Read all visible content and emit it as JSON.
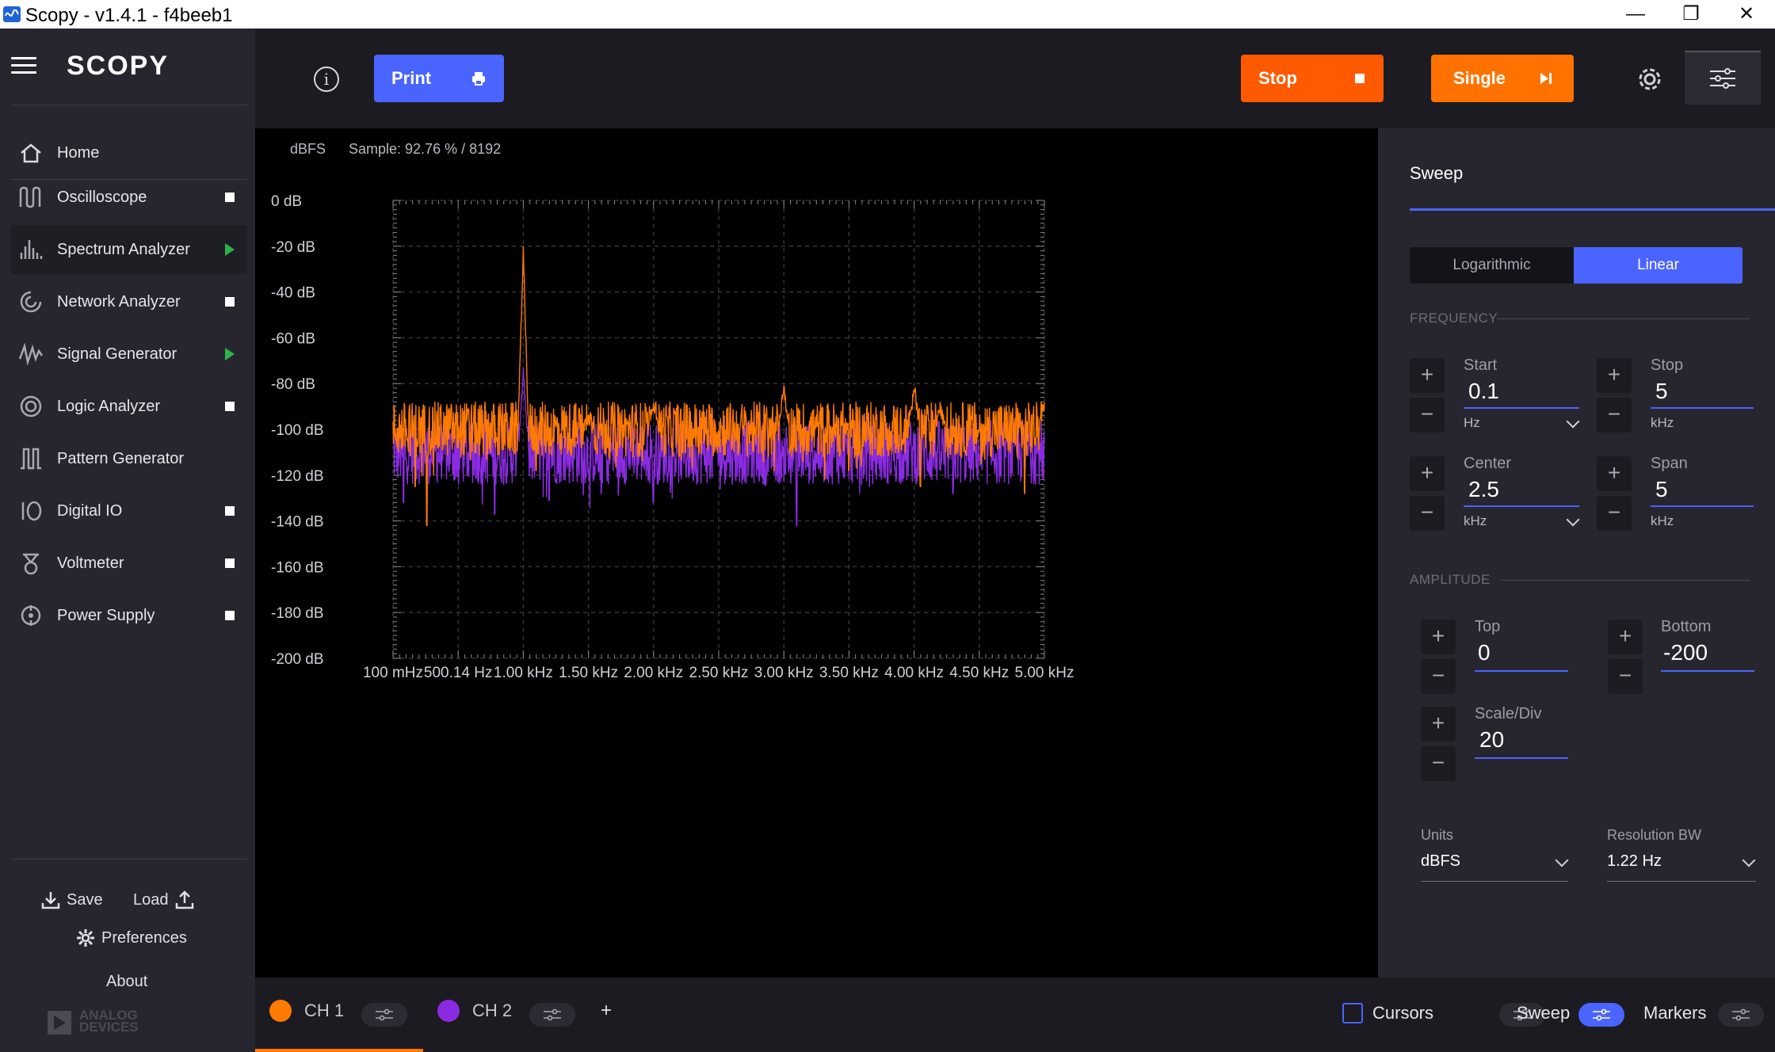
{
  "window": {
    "title": "Scopy - v1.4.1 - f4beeb1",
    "minimize": "—",
    "restore": "❐",
    "close": "✕"
  },
  "sidebar": {
    "logo": "SCOPY",
    "home": "Home",
    "items": [
      {
        "label": "Oscilloscope",
        "state": "stop"
      },
      {
        "label": "Spectrum Analyzer",
        "state": "run"
      },
      {
        "label": "Network Analyzer",
        "state": "stop"
      },
      {
        "label": "Signal Generator",
        "state": "run"
      },
      {
        "label": "Logic Analyzer",
        "state": "stop"
      },
      {
        "label": "Pattern Generator",
        "state": "none"
      },
      {
        "label": "Digital IO",
        "state": "stop"
      },
      {
        "label": "Voltmeter",
        "state": "stop"
      },
      {
        "label": "Power Supply",
        "state": "stop"
      }
    ],
    "save": "Save",
    "load": "Load",
    "preferences": "Preferences",
    "about": "About",
    "brand_line1": "ANALOG",
    "brand_line2": "DEVICES"
  },
  "toolbar": {
    "info": "i",
    "print_label": "Print",
    "stop_label": "Stop",
    "single_label": "Single",
    "colors": {
      "print": "#4a64ff",
      "stop": "#ff5a00",
      "single": "#ff7200"
    }
  },
  "plot": {
    "unit_label": "dBFS",
    "sample_text": "Sample: 92.76 % / 8192"
  },
  "chart_data": {
    "type": "line",
    "title": "",
    "xlabel": "",
    "ylabel": "",
    "x_unit": "Hz",
    "xlim": [
      0.1,
      5000
    ],
    "ylim": [
      -200,
      0
    ],
    "grid": true,
    "y_ticks": [
      "0 dB",
      "-20 dB",
      "-40 dB",
      "-60 dB",
      "-80 dB",
      "-100 dB",
      "-120 dB",
      "-140 dB",
      "-160 dB",
      "-180 dB",
      "-200 dB"
    ],
    "x_ticks": [
      "100 mHz",
      "500.14 Hz",
      "1.00 kHz",
      "1.50 kHz",
      "2.00 kHz",
      "2.50 kHz",
      "3.00 kHz",
      "3.50 kHz",
      "4.00 kHz",
      "4.50 kHz",
      "5.00 kHz"
    ],
    "series": [
      {
        "name": "CH 1",
        "color": "#ff7a00",
        "noise_floor_db": -100,
        "noise_spread_db": 12,
        "peaks": [
          {
            "x": 1000,
            "y": -22
          },
          {
            "x": 1500,
            "y": -95
          },
          {
            "x": 2000,
            "y": -88
          },
          {
            "x": 3000,
            "y": -81
          },
          {
            "x": 4000,
            "y": -81
          },
          {
            "x": 4200,
            "y": -91
          },
          {
            "x": 5000,
            "y": -88
          }
        ],
        "dips": [
          {
            "x": 170,
            "y": -125
          },
          {
            "x": 260,
            "y": -142
          },
          {
            "x": 1100,
            "y": -118
          },
          {
            "x": 3500,
            "y": -118
          },
          {
            "x": 4050,
            "y": -125
          },
          {
            "x": 4850,
            "y": -128
          }
        ]
      },
      {
        "name": "CH 2",
        "color": "#8a2be2",
        "noise_floor_db": -110,
        "noise_spread_db": 14,
        "peaks": [
          {
            "x": 1000,
            "y": -75
          }
        ],
        "dips": [
          {
            "x": 80,
            "y": -132
          },
          {
            "x": 780,
            "y": -137
          },
          {
            "x": 1200,
            "y": -131
          },
          {
            "x": 1600,
            "y": -128
          },
          {
            "x": 2000,
            "y": -132
          },
          {
            "x": 3100,
            "y": -142
          },
          {
            "x": 4300,
            "y": -128
          }
        ]
      }
    ]
  },
  "panel": {
    "title": "Sweep",
    "scale_log": "Logarithmic",
    "scale_lin": "Linear",
    "freq_section": "FREQUENCY",
    "start": {
      "label": "Start",
      "value": "0.1",
      "unit": "Hz"
    },
    "stop": {
      "label": "Stop",
      "value": "5",
      "unit": "kHz"
    },
    "center": {
      "label": "Center",
      "value": "2.5",
      "unit": "kHz"
    },
    "span": {
      "label": "Span",
      "value": "5",
      "unit": "kHz"
    },
    "amp_section": "AMPLITUDE",
    "top": {
      "label": "Top",
      "value": "0"
    },
    "bottom": {
      "label": "Bottom",
      "value": "-200"
    },
    "scalediv": {
      "label": "Scale/Div",
      "value": "20"
    },
    "units": {
      "label": "Units",
      "value": "dBFS"
    },
    "rbw": {
      "label": "Resolution BW",
      "value": "1.22 Hz"
    },
    "plus": "+",
    "minus": "−"
  },
  "bottombar": {
    "ch1": "CH 1",
    "ch2": "CH 2",
    "add": "+",
    "cursors": "Cursors",
    "sweep": "Sweep",
    "markers": "Markers"
  }
}
